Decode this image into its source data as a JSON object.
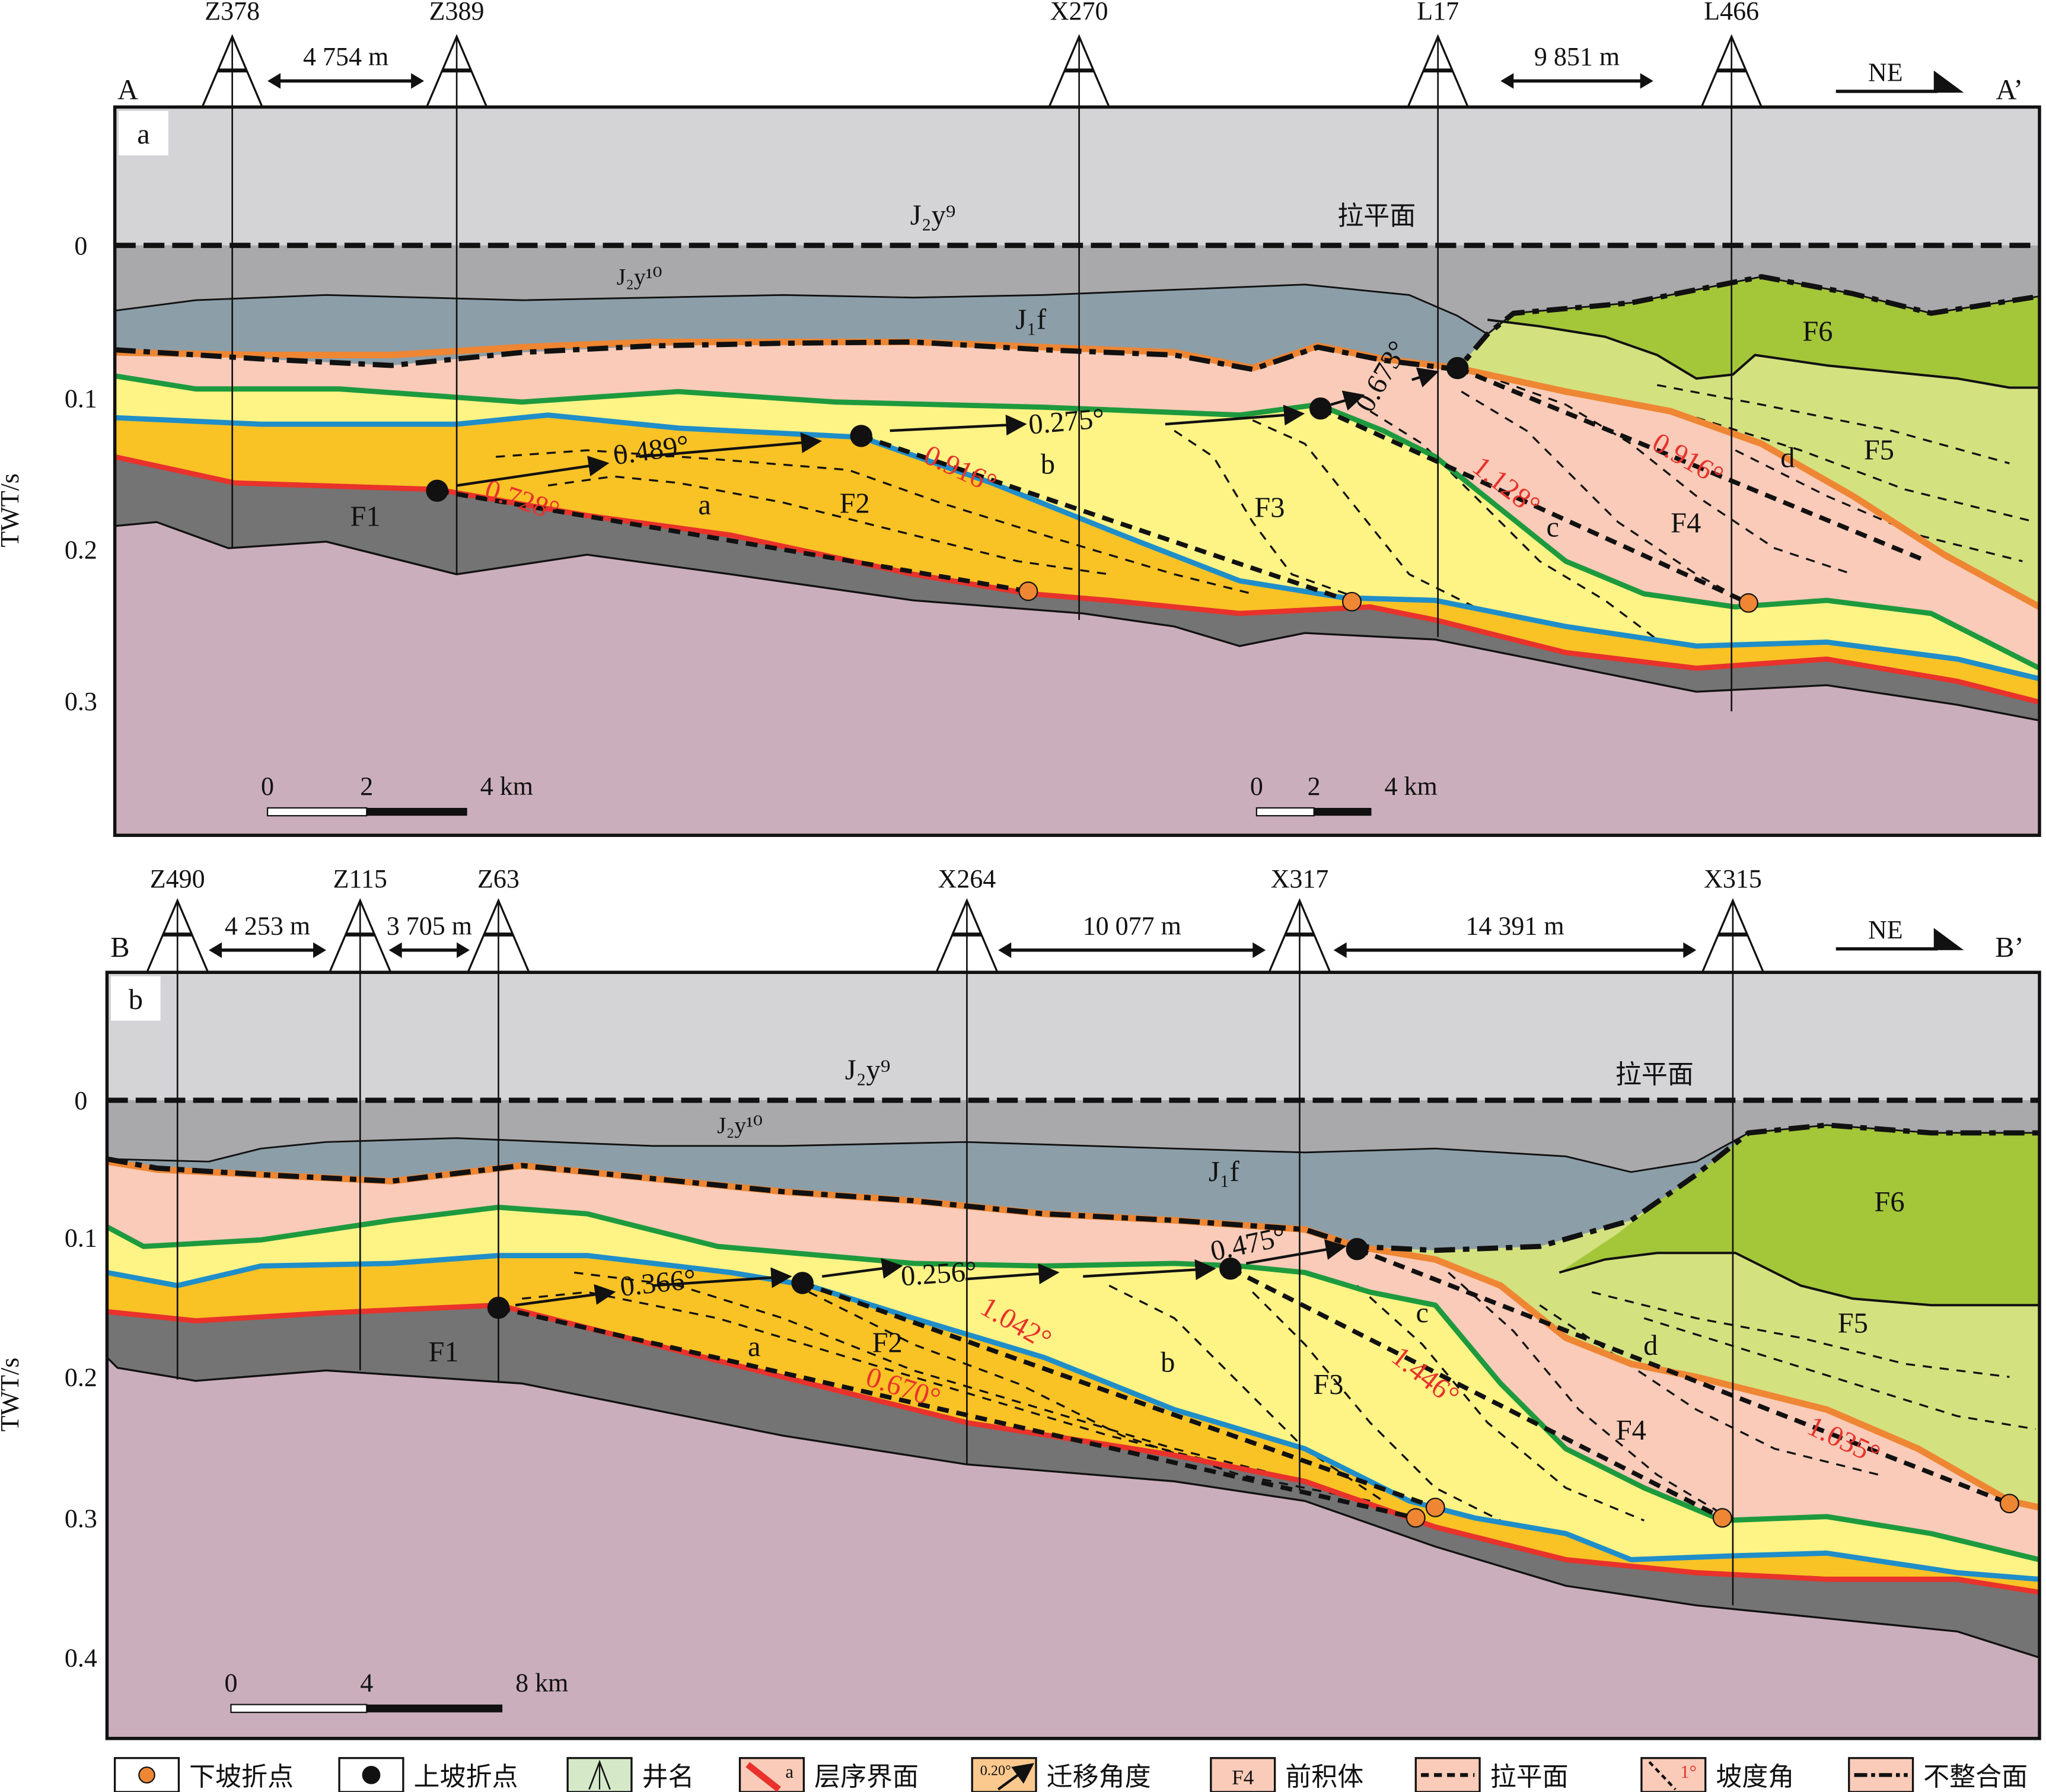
{
  "axis": {
    "ylabel": "TWT/s",
    "panel_a_ticks": [
      "0",
      "0.1",
      "0.2",
      "0.3"
    ],
    "panel_b_ticks": [
      "0",
      "0.1",
      "0.2",
      "0.3",
      "0.4"
    ]
  },
  "panel_a": {
    "label": "a",
    "start": "A",
    "end": "A’",
    "direction": "NE",
    "wells": [
      "Z378",
      "Z389",
      "X270",
      "L17",
      "L466"
    ],
    "distances": [
      "4 754 m",
      "9 851 m"
    ],
    "datum": "拉平面",
    "units": {
      "j2y9": "J₂y⁹",
      "j2y10": "J₂y¹⁰",
      "j1f": "J₁f"
    },
    "bodies": [
      "F1",
      "F2",
      "F3",
      "F4",
      "F5",
      "F6"
    ],
    "trajectories": [
      "a",
      "b",
      "c",
      "d"
    ],
    "migration_angles": [
      "0.489°",
      "0.275°",
      "0.673°"
    ],
    "slope_angles": [
      "0.728°",
      "0.916°",
      "1.128°",
      "0.916°"
    ],
    "scale1": [
      "0",
      "2",
      "4 km"
    ],
    "scale2": [
      "0",
      "2",
      "4 km"
    ]
  },
  "panel_b": {
    "label": "b",
    "start": "B",
    "end": "B’",
    "direction": "NE",
    "wells": [
      "Z490",
      "Z115",
      "Z63",
      "X264",
      "X317",
      "X315"
    ],
    "distances": [
      "4 253 m",
      "3 705 m",
      "10 077 m",
      "14 391 m"
    ],
    "datum": "拉平面",
    "units": {
      "j2y9": "J₂y⁹",
      "j2y10": "J₂y¹⁰",
      "j1f": "J₁f"
    },
    "bodies": [
      "F1",
      "F2",
      "F3",
      "F4",
      "F5",
      "F6"
    ],
    "trajectories": [
      "a",
      "b",
      "c",
      "d"
    ],
    "migration_angles": [
      "0.366°",
      "0.256°",
      "0.475°"
    ],
    "slope_angles": [
      "1.042°",
      "0.670°",
      "1.446°",
      "1.035°"
    ],
    "scale": [
      "0",
      "4",
      "8 km"
    ]
  },
  "legend": {
    "items": [
      "下坡折点",
      "上坡折点",
      "井名",
      "层序界面",
      "迁移角度",
      "前积体",
      "拉平面",
      "坡度角",
      "不整合面"
    ],
    "sample_a": "a",
    "sample_angle": "0.20°",
    "sample_body": "F4",
    "sample_slope": "1°"
  },
  "colors": {
    "j2y9": "#d4d3d6",
    "j2y10": "#a9a9ab",
    "j1f": "#8c9ea8",
    "pink": "#f9cbb8",
    "yellow": "#fef385",
    "orange_fill": "#f9c225",
    "dark": "#747474",
    "basement": "#cbaebb",
    "f5": "#d4e17f",
    "f6": "#a4c639",
    "red": "#e8322b",
    "blue": "#1f8ec9",
    "green": "#1e9a3e",
    "orange": "#ee8633"
  }
}
